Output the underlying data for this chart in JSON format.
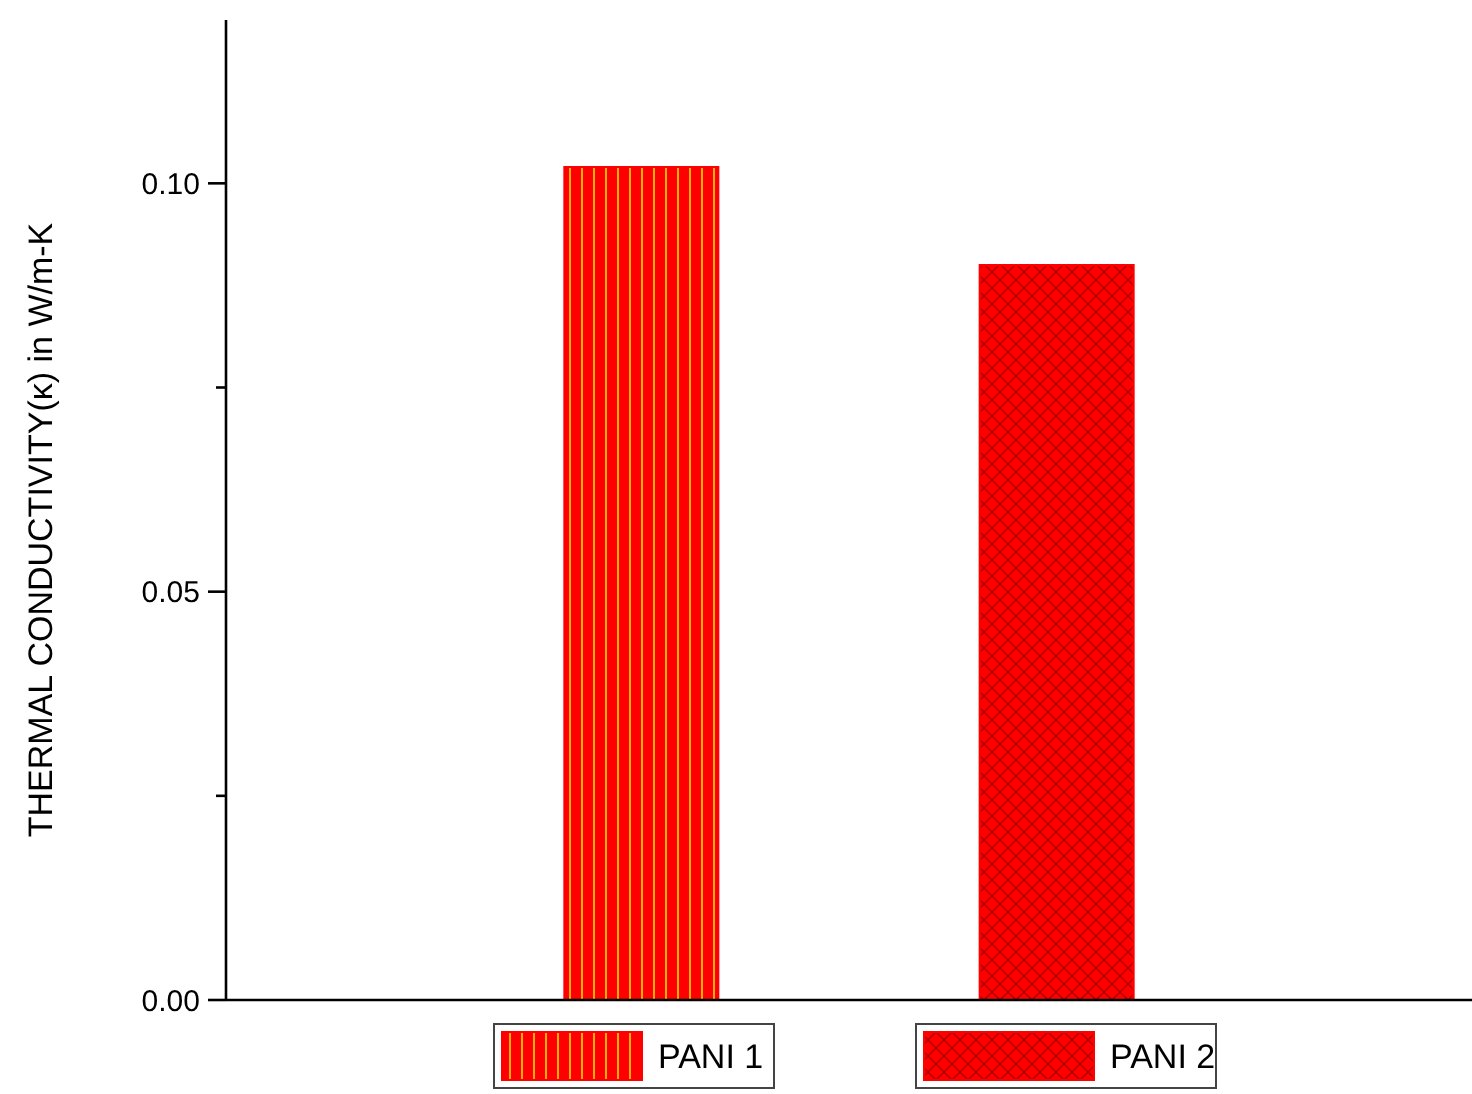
{
  "chart_data": {
    "type": "bar",
    "ylabel": "THERMAL CONDUCTIVITY(κ) in W/m-K",
    "categories": [
      null,
      null
    ],
    "series": [
      {
        "name": "PANI 1",
        "color": "#ff0000",
        "values": [
          0.102,
          null
        ]
      },
      {
        "name": "PANI 2",
        "color": "#ff0000",
        "values": [
          null,
          0.09
        ]
      }
    ],
    "ylim": [
      0,
      0.12
    ],
    "yticks": [
      {
        "value": 0,
        "label": "0.00"
      },
      {
        "value": 0.025,
        "label": null
      },
      {
        "value": 0.05,
        "label": "0.05"
      },
      {
        "value": 0.075,
        "label": null
      },
      {
        "value": 0.1,
        "label": "0.10"
      }
    ],
    "grid": false,
    "legend": "bottom"
  }
}
